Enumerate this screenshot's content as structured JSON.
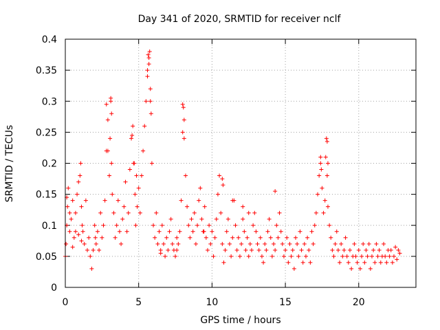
{
  "chart_data": {
    "type": "scatter",
    "title": "Day 341 of 2020, SRMTID for receiver nclf",
    "xlabel": "GPS time / hours",
    "ylabel": "SRMTID / TECUs",
    "xlim": [
      0,
      23.9
    ],
    "ylim": [
      0,
      0.4
    ],
    "grid": true,
    "marker": "+",
    "series_color": "#ff0000",
    "x_ticks": [
      {
        "value": 0,
        "label": "0"
      },
      {
        "value": 5,
        "label": "5"
      },
      {
        "value": 10,
        "label": "10"
      },
      {
        "value": 15,
        "label": "15"
      },
      {
        "value": 20,
        "label": "20"
      }
    ],
    "y_ticks": [
      {
        "value": 0,
        "label": "0"
      },
      {
        "value": 0.05,
        "label": "0.05"
      },
      {
        "value": 0.1,
        "label": "0.1"
      },
      {
        "value": 0.15,
        "label": "0.15"
      },
      {
        "value": 0.2,
        "label": "0.2"
      },
      {
        "value": 0.25,
        "label": "0.25"
      },
      {
        "value": 0.3,
        "label": "0.3"
      },
      {
        "value": 0.35,
        "label": "0.35"
      },
      {
        "value": 0.4,
        "label": "0.4"
      }
    ],
    "series": [
      {
        "name": "SRMTID",
        "x": [
          0.0,
          0.05,
          0.1,
          0.15,
          0.2,
          0.3,
          0.4,
          0.5,
          0.6,
          0.7,
          0.8,
          0.9,
          1.0,
          1.05,
          1.1,
          1.15,
          1.2,
          1.3,
          1.4,
          1.5,
          1.6,
          1.7,
          1.8,
          1.9,
          2.0,
          2.05,
          2.1,
          2.2,
          2.3,
          2.4,
          2.5,
          2.6,
          2.7,
          2.8,
          2.9,
          3.0,
          3.05,
          3.1,
          3.15,
          3.2,
          3.3,
          3.4,
          3.5,
          3.6,
          3.7,
          3.8,
          3.9,
          4.0,
          4.1,
          4.2,
          4.3,
          4.4,
          4.5,
          4.6,
          4.7,
          4.75,
          4.8,
          4.9,
          5.0,
          5.1,
          5.2,
          5.3,
          5.4,
          5.5,
          5.6,
          5.7,
          5.75,
          5.8,
          5.85,
          5.9,
          6.0,
          6.1,
          6.2,
          6.3,
          6.4,
          6.5,
          6.6,
          6.7,
          6.8,
          6.9,
          7.0,
          7.1,
          7.2,
          7.3,
          7.4,
          7.5,
          7.6,
          7.7,
          7.8,
          7.9,
          8.0,
          8.05,
          8.1,
          8.2,
          8.3,
          8.4,
          8.5,
          8.6,
          8.7,
          8.8,
          8.9,
          9.0,
          9.1,
          9.2,
          9.3,
          9.4,
          9.5,
          9.6,
          9.7,
          9.8,
          9.9,
          10.0,
          10.1,
          10.2,
          10.3,
          10.4,
          10.5,
          10.6,
          10.7,
          10.8,
          10.9,
          11.0,
          11.1,
          11.2,
          11.3,
          11.4,
          11.5,
          11.6,
          11.7,
          11.8,
          11.9,
          12.0,
          12.1,
          12.2,
          12.3,
          12.4,
          12.5,
          12.6,
          12.7,
          12.8,
          12.9,
          13.0,
          13.1,
          13.2,
          13.3,
          13.4,
          13.5,
          13.6,
          13.7,
          13.8,
          13.9,
          14.0,
          14.1,
          14.2,
          14.3,
          14.4,
          14.5,
          14.6,
          14.7,
          14.8,
          14.9,
          15.0,
          15.1,
          15.2,
          15.3,
          15.4,
          15.5,
          15.6,
          15.7,
          15.8,
          15.9,
          16.0,
          16.1,
          16.2,
          16.3,
          16.4,
          16.5,
          16.6,
          16.7,
          16.8,
          16.9,
          17.0,
          17.1,
          17.2,
          17.3,
          17.4,
          17.5,
          17.6,
          17.7,
          17.75,
          17.8,
          17.85,
          17.9,
          18.0,
          18.1,
          18.2,
          18.3,
          18.4,
          18.5,
          18.6,
          18.7,
          18.8,
          18.9,
          19.0,
          19.1,
          19.2,
          19.3,
          19.4,
          19.5,
          19.6,
          19.7,
          19.8,
          19.9,
          20.0,
          20.1,
          20.2,
          20.3,
          20.4,
          20.5,
          20.6,
          20.7,
          20.8,
          20.9,
          21.0,
          21.1,
          21.2,
          21.3,
          21.4,
          21.5,
          21.6,
          21.7,
          21.8,
          21.9,
          22.0,
          22.1,
          22.2,
          22.3,
          22.4,
          22.5,
          22.6,
          22.7,
          22.8,
          0.1,
          0.3,
          0.5,
          0.7,
          0.9,
          1.1,
          2.8,
          2.9,
          3.1,
          3.15,
          4.55,
          4.65,
          4.85,
          5.6,
          5.65,
          5.7,
          5.8,
          8.0,
          8.1,
          10.7,
          10.75,
          17.4,
          17.45,
          17.85,
          17.9,
          14.3,
          11.4,
          12.1,
          12.5,
          9.45,
          6.5,
          7.6
        ],
        "y": [
          0.05,
          0.07,
          0.1,
          0.13,
          0.16,
          0.09,
          0.11,
          0.14,
          0.08,
          0.12,
          0.15,
          0.17,
          0.18,
          0.2,
          0.13,
          0.1,
          0.09,
          0.07,
          0.14,
          0.06,
          0.08,
          0.05,
          0.03,
          0.06,
          0.1,
          0.08,
          0.07,
          0.09,
          0.06,
          0.12,
          0.08,
          0.1,
          0.14,
          0.22,
          0.27,
          0.18,
          0.24,
          0.3,
          0.2,
          0.15,
          0.12,
          0.08,
          0.1,
          0.14,
          0.09,
          0.07,
          0.11,
          0.13,
          0.17,
          0.09,
          0.12,
          0.19,
          0.24,
          0.26,
          0.2,
          0.15,
          0.1,
          0.13,
          0.16,
          0.12,
          0.18,
          0.22,
          0.26,
          0.3,
          0.34,
          0.37,
          0.38,
          0.32,
          0.28,
          0.2,
          0.1,
          0.08,
          0.12,
          0.07,
          0.09,
          0.06,
          0.1,
          0.07,
          0.05,
          0.08,
          0.06,
          0.09,
          0.11,
          0.07,
          0.06,
          0.05,
          0.08,
          0.07,
          0.09,
          0.14,
          0.25,
          0.29,
          0.27,
          0.18,
          0.13,
          0.1,
          0.08,
          0.11,
          0.09,
          0.12,
          0.07,
          0.1,
          0.14,
          0.16,
          0.11,
          0.09,
          0.13,
          0.08,
          0.06,
          0.1,
          0.07,
          0.09,
          0.05,
          0.08,
          0.11,
          0.15,
          0.18,
          0.12,
          0.07,
          0.04,
          0.06,
          0.09,
          0.11,
          0.07,
          0.05,
          0.08,
          0.14,
          0.1,
          0.06,
          0.08,
          0.05,
          0.07,
          0.11,
          0.09,
          0.06,
          0.08,
          0.05,
          0.07,
          0.06,
          0.1,
          0.12,
          0.09,
          0.07,
          0.06,
          0.08,
          0.05,
          0.04,
          0.07,
          0.06,
          0.09,
          0.11,
          0.08,
          0.05,
          0.07,
          0.06,
          0.1,
          0.08,
          0.12,
          0.09,
          0.07,
          0.05,
          0.06,
          0.08,
          0.04,
          0.07,
          0.05,
          0.06,
          0.03,
          0.08,
          0.07,
          0.05,
          0.09,
          0.06,
          0.04,
          0.07,
          0.05,
          0.08,
          0.06,
          0.04,
          0.09,
          0.07,
          0.1,
          0.12,
          0.15,
          0.18,
          0.2,
          0.16,
          0.12,
          0.14,
          0.21,
          0.24,
          0.18,
          0.13,
          0.1,
          0.08,
          0.06,
          0.05,
          0.07,
          0.09,
          0.06,
          0.04,
          0.07,
          0.05,
          0.06,
          0.08,
          0.05,
          0.04,
          0.06,
          0.03,
          0.05,
          0.07,
          0.05,
          0.04,
          0.06,
          0.03,
          0.05,
          0.07,
          0.04,
          0.06,
          0.05,
          0.07,
          0.03,
          0.05,
          0.06,
          0.04,
          0.07,
          0.05,
          0.06,
          0.04,
          0.05,
          0.07,
          0.05,
          0.04,
          0.06,
          0.05,
          0.06,
          0.04,
          0.05,
          0.065,
          0.045,
          0.06,
          0.055,
          0.145,
          0.12,
          0.065,
          0.09,
          0.085,
          0.075,
          0.295,
          0.22,
          0.305,
          0.28,
          0.245,
          0.2,
          0.18,
          0.35,
          0.375,
          0.36,
          0.3,
          0.295,
          0.24,
          0.175,
          0.165,
          0.21,
          0.19,
          0.235,
          0.2,
          0.155,
          0.14,
          0.13,
          0.12,
          0.09,
          0.055,
          0.06
        ]
      }
    ]
  }
}
